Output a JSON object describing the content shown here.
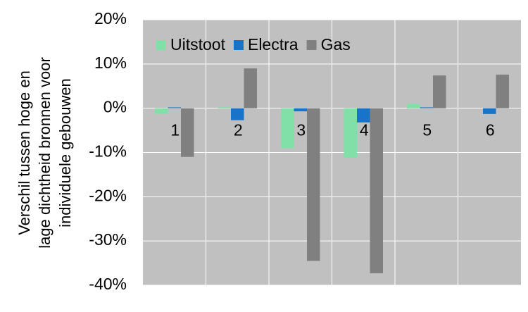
{
  "chart_data": {
    "type": "bar",
    "ylabel": [
      "Verschil tussen hoge en",
      "lage dichtheid bronnen voor",
      "individuele gebouwen"
    ],
    "categories": [
      "1",
      "2",
      "3",
      "4",
      "5",
      "6"
    ],
    "series": [
      {
        "name": "Uitstoot",
        "color": "#80e0a8",
        "values": [
          -1.2,
          0.2,
          -9,
          -11.2,
          1,
          0
        ]
      },
      {
        "name": "Electra",
        "color": "#1874c8",
        "values": [
          0.2,
          -2.7,
          -0.7,
          -3.2,
          0.2,
          -1.3
        ]
      },
      {
        "name": "Gas",
        "color": "#808080",
        "values": [
          -11,
          9,
          -34.5,
          -37.3,
          7.4,
          7.6
        ]
      }
    ],
    "ylim": [
      -40,
      20
    ],
    "yticks": [
      {
        "value": -40,
        "label": "-40%"
      },
      {
        "value": -30,
        "label": "-30%"
      },
      {
        "value": -20,
        "label": "-20%"
      },
      {
        "value": -10,
        "label": "-10%"
      },
      {
        "value": 0,
        "label": "0%"
      },
      {
        "value": 10,
        "label": "10%"
      },
      {
        "value": 20,
        "label": "20%"
      }
    ],
    "grid": true,
    "background": "#c0c0c0",
    "legend_position": "top-left"
  }
}
